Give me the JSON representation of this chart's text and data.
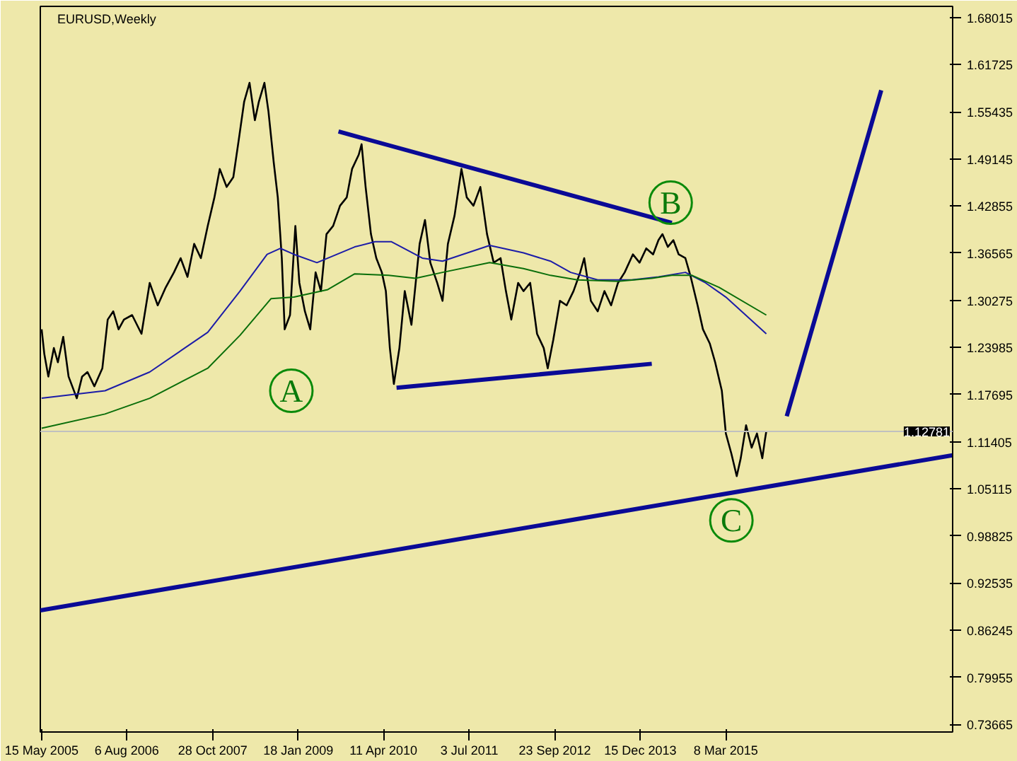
{
  "chart_data": {
    "type": "line",
    "title": "EURUSD,Weekly",
    "xlim": [
      "2005-05-08",
      "2018-06-08"
    ],
    "xticks": [
      {
        "value": "2005-05-15",
        "label": "15 May 2005"
      },
      {
        "value": "2006-08-06",
        "label": "6 Aug 2006"
      },
      {
        "value": "2007-10-28",
        "label": "28 Oct 2007"
      },
      {
        "value": "2009-01-18",
        "label": "18 Jan 2009"
      },
      {
        "value": "2010-04-11",
        "label": "11 Apr 2010"
      },
      {
        "value": "2011-07-03",
        "label": "3 Jul 2011"
      },
      {
        "value": "2012-09-23",
        "label": "23 Sep 2012"
      },
      {
        "value": "2013-12-15",
        "label": "15 Dec 2013"
      },
      {
        "value": "2015-03-08",
        "label": "8 Mar 2015"
      }
    ],
    "ylim": [
      0.7266,
      1.695
    ],
    "yticks": [
      1.68015,
      1.61725,
      1.55435,
      1.49145,
      1.42855,
      1.36565,
      1.30275,
      1.23985,
      1.17695,
      1.11405,
      1.05115,
      0.98825,
      0.92535,
      0.86245,
      0.79955,
      0.73665
    ],
    "grid": false,
    "ref_lines": [
      {
        "axis": "y",
        "value": 1.12781,
        "label": "1.12781",
        "color": "#c0c0c0"
      }
    ],
    "annotations": [
      {
        "text": "A",
        "x": "2008-12-13",
        "y": 1.182
      },
      {
        "text": "B",
        "x": "2014-05-23",
        "y": 1.433
      },
      {
        "text": "C",
        "x": "2015-04-06",
        "y": 1.009
      }
    ],
    "series": [
      {
        "color": "#000000",
        "x": [
          "2005-05-15",
          "2005-05-29",
          "2005-06-19",
          "2005-07-18",
          "2005-08-08",
          "2005-09-05",
          "2005-10-03",
          "2005-11-15",
          "2005-12-13",
          "2006-01-10",
          "2006-02-15",
          "2006-03-29",
          "2006-04-26",
          "2006-05-25",
          "2006-06-22",
          "2006-07-20",
          "2006-09-01",
          "2006-10-20",
          "2006-12-02",
          "2007-01-13",
          "2007-02-24",
          "2007-04-08",
          "2007-05-13",
          "2007-06-18",
          "2007-07-23",
          "2007-08-27",
          "2007-10-02",
          "2007-11-06",
          "2007-12-04",
          "2008-01-09",
          "2008-02-13",
          "2008-03-12",
          "2008-04-10",
          "2008-05-08",
          "2008-06-05",
          "2008-06-26",
          "2008-07-25",
          "2008-08-15",
          "2008-09-12",
          "2008-10-03",
          "2008-10-24",
          "2008-11-08",
          "2008-12-06",
          "2009-01-03",
          "2009-01-24",
          "2009-02-22",
          "2009-03-22",
          "2009-04-19",
          "2009-05-17",
          "2009-06-15",
          "2009-07-20",
          "2009-08-25",
          "2009-09-29",
          "2009-10-27",
          "2009-12-01",
          "2009-12-16",
          "2010-01-06",
          "2010-02-03",
          "2010-03-03",
          "2010-04-01",
          "2010-04-22",
          "2010-05-13",
          "2010-06-03",
          "2010-07-02",
          "2010-07-30",
          "2010-09-03",
          "2010-10-16",
          "2010-11-13",
          "2010-12-11",
          "2011-01-16",
          "2011-02-13",
          "2011-03-13",
          "2011-04-17",
          "2011-05-23",
          "2011-06-20",
          "2011-07-25",
          "2011-08-30",
          "2011-10-04",
          "2011-11-08",
          "2011-12-14",
          "2012-01-11",
          "2012-02-08",
          "2012-03-15",
          "2012-04-12",
          "2012-05-17",
          "2012-06-22",
          "2012-07-27",
          "2012-08-17",
          "2012-09-15",
          "2012-10-20",
          "2012-11-24",
          "2012-12-30",
          "2013-02-03",
          "2013-02-24",
          "2013-03-31",
          "2013-05-06",
          "2013-06-10",
          "2013-07-15",
          "2013-08-20",
          "2013-09-24",
          "2013-11-06",
          "2013-12-11",
          "2014-01-15",
          "2014-02-20",
          "2014-03-20",
          "2014-04-10",
          "2014-05-08",
          "2014-06-06",
          "2014-07-04",
          "2014-08-08",
          "2014-09-05",
          "2014-10-11",
          "2014-11-08",
          "2014-12-14",
          "2015-01-11",
          "2015-02-15",
          "2015-03-08",
          "2015-04-06",
          "2015-05-04",
          "2015-05-25",
          "2015-06-22",
          "2015-07-21",
          "2015-08-18",
          "2015-09-15",
          "2015-09-29",
          "2015-10-06"
        ],
        "values": [
          1.264,
          1.231,
          1.201,
          1.239,
          1.22,
          1.254,
          1.201,
          1.172,
          1.201,
          1.207,
          1.188,
          1.212,
          1.277,
          1.288,
          1.264,
          1.277,
          1.283,
          1.258,
          1.326,
          1.296,
          1.32,
          1.34,
          1.359,
          1.334,
          1.378,
          1.359,
          1.402,
          1.44,
          1.478,
          1.454,
          1.467,
          1.516,
          1.568,
          1.593,
          1.543,
          1.568,
          1.593,
          1.555,
          1.486,
          1.44,
          1.359,
          1.264,
          1.283,
          1.402,
          1.326,
          1.288,
          1.264,
          1.34,
          1.315,
          1.391,
          1.402,
          1.429,
          1.44,
          1.478,
          1.497,
          1.511,
          1.454,
          1.391,
          1.359,
          1.34,
          1.315,
          1.239,
          1.191,
          1.239,
          1.315,
          1.27,
          1.378,
          1.41,
          1.353,
          1.326,
          1.302,
          1.378,
          1.416,
          1.478,
          1.44,
          1.429,
          1.454,
          1.391,
          1.353,
          1.359,
          1.315,
          1.277,
          1.326,
          1.315,
          1.326,
          1.258,
          1.239,
          1.212,
          1.25,
          1.302,
          1.296,
          1.315,
          1.34,
          1.359,
          1.302,
          1.288,
          1.315,
          1.296,
          1.326,
          1.34,
          1.364,
          1.353,
          1.372,
          1.364,
          1.383,
          1.391,
          1.374,
          1.383,
          1.364,
          1.359,
          1.334,
          1.296,
          1.264,
          1.245,
          1.22,
          1.182,
          1.125,
          1.098,
          1.068,
          1.092,
          1.136,
          1.106,
          1.125,
          1.092,
          1.117,
          1.128
        ]
      },
      {
        "color": "#1c1ca8",
        "x": [
          "2005-05-15",
          "2006-04-12",
          "2006-12-02",
          "2007-10-02",
          "2008-03-19",
          "2008-08-08",
          "2008-10-17",
          "2008-12-27",
          "2009-04-26",
          "2009-11-10",
          "2010-02-24",
          "2010-05-20",
          "2010-10-30",
          "2011-02-13",
          "2011-10-18",
          "2012-04-12",
          "2012-08-31",
          "2012-12-15",
          "2013-05-06",
          "2013-10-30",
          "2014-03-20",
          "2014-08-08",
          "2014-11-22",
          "2015-03-08",
          "2015-10-06"
        ],
        "values": [
          1.172,
          1.182,
          1.207,
          1.26,
          1.315,
          1.364,
          1.372,
          1.364,
          1.353,
          1.374,
          1.381,
          1.381,
          1.359,
          1.355,
          1.376,
          1.366,
          1.355,
          1.34,
          1.33,
          1.33,
          1.334,
          1.34,
          1.326,
          1.307,
          1.258
        ]
      },
      {
        "color": "#0a6e0a",
        "x": [
          "2005-05-15",
          "2006-04-12",
          "2006-12-02",
          "2007-10-02",
          "2008-03-19",
          "2008-08-29",
          "2008-12-27",
          "2009-06-22",
          "2009-11-10",
          "2010-05-06",
          "2010-09-24",
          "2011-02-13",
          "2011-10-18",
          "2012-04-12",
          "2012-08-31",
          "2013-01-20",
          "2013-08-20",
          "2014-02-13",
          "2014-05-29",
          "2014-09-12",
          "2015-02-01",
          "2015-10-06"
        ],
        "values": [
          1.132,
          1.151,
          1.172,
          1.212,
          1.256,
          1.305,
          1.307,
          1.317,
          1.338,
          1.336,
          1.332,
          1.34,
          1.353,
          1.345,
          1.336,
          1.33,
          1.328,
          1.332,
          1.336,
          1.336,
          1.32,
          1.283
        ]
      },
      {
        "color": "#0a0a96",
        "x": [
          "2009-08-17",
          "2014-05-29"
        ],
        "values": [
          1.528,
          1.406
        ]
      },
      {
        "color": "#0a0a96",
        "x": [
          "2010-06-17",
          "2014-02-13"
        ],
        "values": [
          1.186,
          1.218
        ]
      },
      {
        "color": "#0a0a96",
        "x": [
          "2005-05-08",
          "2018-06-08"
        ],
        "values": [
          0.889,
          1.096
        ]
      },
      {
        "color": "#0a0a96",
        "x": [
          "2016-01-21",
          "2017-05-30"
        ],
        "values": [
          1.148,
          1.583
        ]
      }
    ]
  }
}
